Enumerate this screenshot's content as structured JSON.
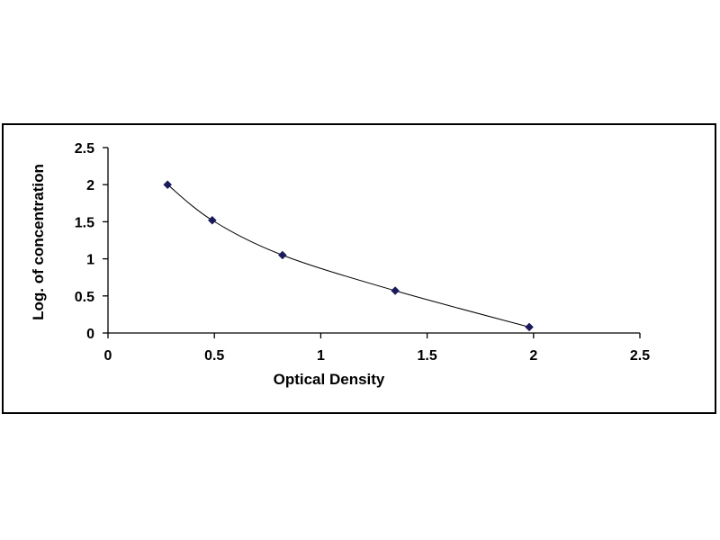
{
  "colors": {
    "axis": "#000000",
    "marker": "#1a1a5e",
    "curve": "#000000",
    "frame": "#000000",
    "background": "#ffffff"
  },
  "chart_data": {
    "type": "scatter",
    "title": "",
    "xlabel": "Optical Density",
    "ylabel": "Log. of concentration",
    "xlim": [
      0,
      2.5
    ],
    "ylim": [
      0,
      2.5
    ],
    "x_ticks": [
      "0",
      "0.5",
      "1",
      "1.5",
      "2",
      "2.5"
    ],
    "y_ticks": [
      "0",
      "0.5",
      "1",
      "1.5",
      "2",
      "2.5"
    ],
    "grid": false,
    "legend": "none",
    "marker": "diamond",
    "trendline": "smooth curve through points",
    "series": [
      {
        "x": [
          0.28,
          0.49,
          0.82,
          1.35,
          1.98
        ],
        "y": [
          2.0,
          1.52,
          1.05,
          0.57,
          0.08
        ]
      }
    ]
  }
}
